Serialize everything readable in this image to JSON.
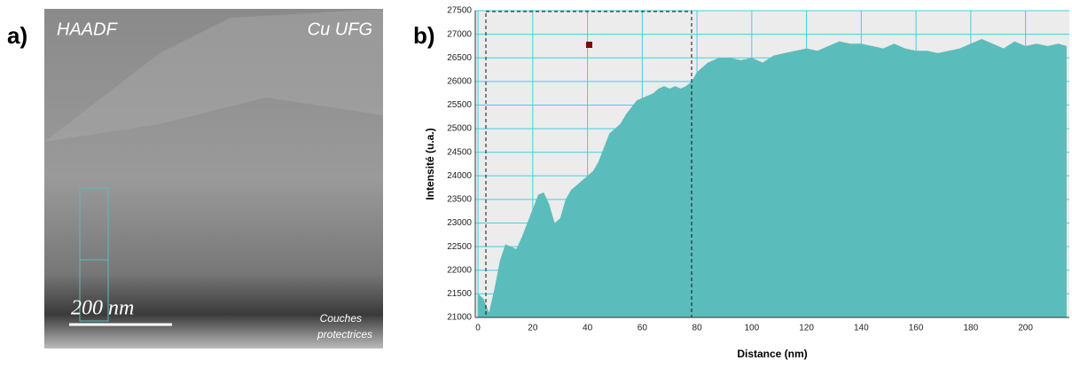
{
  "panel_a": {
    "label": "a)",
    "mode": "HAADF",
    "sample": "Cu UFG",
    "scale_bar": "200 nm",
    "annotation": [
      "Couches",
      "protectrices"
    ]
  },
  "chart_data": {
    "type": "area",
    "panel_label": "b)",
    "x_label": "Distance (nm)",
    "y_label": "Intensité (u.a.)",
    "color": "#5bbcbc",
    "grid": true,
    "grid_color": "#3fd0e0",
    "xlim": [
      -1,
      216
    ],
    "ylim": [
      21000,
      27500
    ],
    "xticks": [
      0,
      20,
      40,
      60,
      80,
      100,
      120,
      140,
      160,
      180,
      200
    ],
    "yticks": [
      21000,
      21500,
      22000,
      22500,
      23000,
      23500,
      24000,
      24500,
      25000,
      25500,
      26000,
      26500,
      27000,
      27500
    ],
    "x": [
      0,
      2,
      4,
      6,
      8,
      10,
      12,
      14,
      16,
      18,
      20,
      22,
      24,
      26,
      28,
      30,
      32,
      34,
      36,
      38,
      40,
      42,
      44,
      46,
      48,
      50,
      52,
      54,
      56,
      58,
      60,
      62,
      64,
      66,
      68,
      70,
      72,
      74,
      76,
      78,
      80,
      84,
      88,
      92,
      96,
      100,
      104,
      108,
      112,
      116,
      120,
      124,
      128,
      132,
      136,
      140,
      144,
      148,
      152,
      156,
      160,
      164,
      168,
      172,
      176,
      180,
      184,
      188,
      192,
      196,
      200,
      204,
      208,
      212,
      215
    ],
    "values": [
      21500,
      21400,
      21100,
      21600,
      22200,
      22550,
      22500,
      22450,
      22700,
      23000,
      23300,
      23600,
      23650,
      23400,
      23000,
      23100,
      23500,
      23700,
      23800,
      23900,
      24000,
      24100,
      24300,
      24600,
      24900,
      25000,
      25100,
      25300,
      25450,
      25600,
      25650,
      25700,
      25750,
      25850,
      25900,
      25850,
      25900,
      25850,
      25900,
      26000,
      26200,
      26400,
      26500,
      26500,
      26450,
      26500,
      26400,
      26550,
      26600,
      26650,
      26700,
      26650,
      26750,
      26850,
      26800,
      26800,
      26750,
      26700,
      26800,
      26700,
      26650,
      26650,
      26600,
      26650,
      26700,
      26800,
      26900,
      26800,
      26700,
      26850,
      26750,
      26800,
      26750,
      26800,
      26750
    ]
  }
}
